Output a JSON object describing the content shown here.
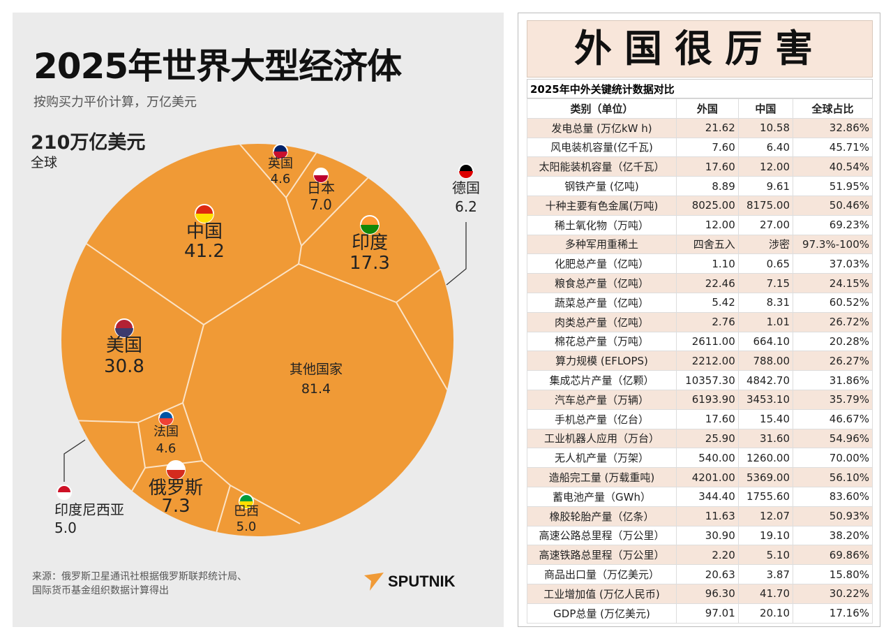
{
  "infographic": {
    "title": "2025年世界大型经济体",
    "subtitle": "按购买力平价计算，万亿美元",
    "total": "210万亿美元",
    "total_label": "全球",
    "source_line1": "来源：俄罗斯卫星通讯社根据俄罗斯联邦统计局、",
    "source_line2": "国际货币基金组织数据计算得出",
    "logo": "SPUTNIK",
    "colors": {
      "cell": "#f09a36",
      "background": "#ebebeb",
      "logo_accent": "#f09a36"
    }
  },
  "chart_data": {
    "type": "treemap",
    "title": "2025年世界大型经济体",
    "unit": "万亿美元",
    "total": 210,
    "categories": [
      "中国",
      "美国",
      "印度",
      "俄罗斯",
      "日本",
      "德国",
      "印度尼西亚",
      "巴西",
      "英国",
      "法国",
      "其他国家"
    ],
    "values": [
      41.2,
      30.8,
      17.3,
      7.3,
      7.0,
      6.2,
      5.0,
      5.0,
      4.6,
      4.6,
      81.4
    ],
    "labels": [
      "41.2",
      "30.8",
      "17.3",
      "7.3",
      "7.0",
      "6.2",
      "5.0",
      "5.0",
      "4.6",
      "4.6",
      "81.4"
    ],
    "flags": [
      "china-flag",
      "usa-flag",
      "india-flag",
      "russia-flag",
      "japan-flag",
      "germany-flag",
      "indonesia-flag",
      "brazil-flag",
      "uk-flag",
      "france-flag",
      ""
    ]
  },
  "table": {
    "banner": "外国很厉害",
    "caption": "2025年中外关键统计数据对比",
    "headers": [
      "类别（单位）",
      "外国",
      "中国",
      "全球占比"
    ],
    "rows": [
      [
        "发电总量 (万亿kW h)",
        "21.62",
        "10.58",
        "32.86%"
      ],
      [
        "风电装机容量(亿千瓦)",
        "7.60",
        "6.40",
        "45.71%"
      ],
      [
        "太阳能装机容量（亿千瓦）",
        "17.60",
        "12.00",
        "40.54%"
      ],
      [
        "钢铁产量 (亿吨)",
        "8.89",
        "9.61",
        "51.95%"
      ],
      [
        "十种主要有色金属(万吨)",
        "8025.00",
        "8175.00",
        "50.46%"
      ],
      [
        "稀土氧化物（万吨）",
        "12.00",
        "27.00",
        "69.23%"
      ],
      [
        "多种军用重稀土",
        "四舍五入",
        "涉密",
        "97.3%-100%"
      ],
      [
        "化肥总产量（亿吨）",
        "1.10",
        "0.65",
        "37.03%"
      ],
      [
        "粮食总产量（亿吨）",
        "22.46",
        "7.15",
        "24.15%"
      ],
      [
        "蔬菜总产量（亿吨）",
        "5.42",
        "8.31",
        "60.52%"
      ],
      [
        "肉类总产量（亿吨）",
        "2.76",
        "1.01",
        "26.72%"
      ],
      [
        "棉花总产量（万吨）",
        "2611.00",
        "664.10",
        "20.28%"
      ],
      [
        "算力规模 (EFLOPS)",
        "2212.00",
        "788.00",
        "26.27%"
      ],
      [
        "集成芯片产量（亿颗）",
        "10357.30",
        "4842.70",
        "31.86%"
      ],
      [
        "汽车总产量（万辆）",
        "6193.90",
        "3453.10",
        "35.79%"
      ],
      [
        "手机总产量（亿台）",
        "17.60",
        "15.40",
        "46.67%"
      ],
      [
        "工业机器人应用（万台）",
        "25.90",
        "31.60",
        "54.96%"
      ],
      [
        "无人机产量（万架）",
        "540.00",
        "1260.00",
        "70.00%"
      ],
      [
        "造船完工量 (万载重吨)",
        "4201.00",
        "5369.00",
        "56.10%"
      ],
      [
        "蓄电池产量（GWh）",
        "344.40",
        "1755.60",
        "83.60%"
      ],
      [
        "橡胶轮胎产量（亿条）",
        "11.63",
        "12.07",
        "50.93%"
      ],
      [
        "高速公路总里程（万公里）",
        "30.90",
        "19.10",
        "38.20%"
      ],
      [
        "高速铁路总里程（万公里）",
        "2.20",
        "5.10",
        "69.86%"
      ],
      [
        "商品出口量（万亿美元）",
        "20.63",
        "3.87",
        "15.80%"
      ],
      [
        "工业增加值 (万亿人民币)",
        "96.30",
        "41.70",
        "30.22%"
      ],
      [
        "GDP总量 (万亿美元)",
        "97.01",
        "20.10",
        "17.16%"
      ]
    ]
  }
}
